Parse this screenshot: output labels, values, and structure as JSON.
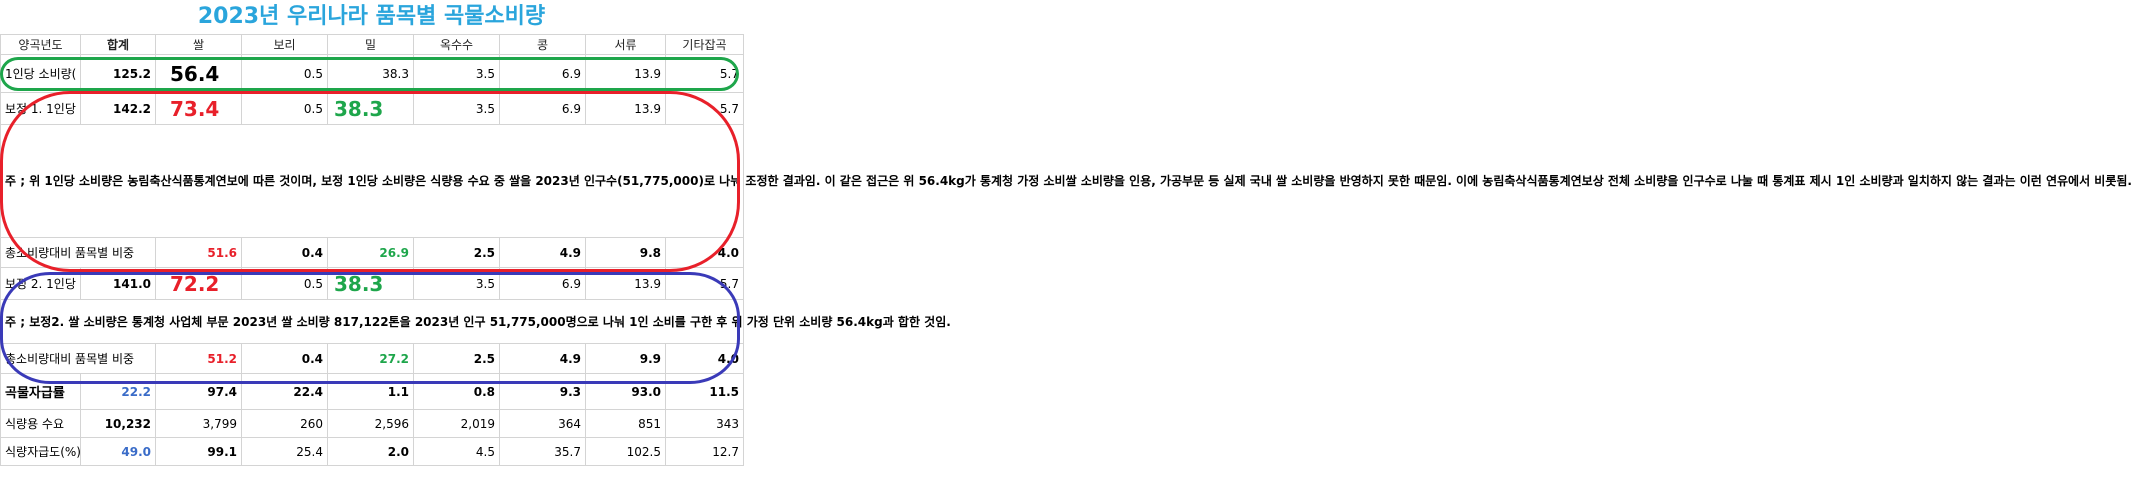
{
  "title": "2023년 우리나라 품목별 곡물소비량",
  "headers": [
    "양곡년도",
    "합계",
    "쌀",
    "보리",
    "밀",
    "옥수수",
    "콩",
    "서류",
    "기타잡곡"
  ],
  "rows": {
    "per_capita": {
      "label": "1인당 소비량(",
      "values": [
        "125.2",
        "56.4",
        "0.5",
        "38.3",
        "3.5",
        "6.9",
        "13.9",
        "5.7"
      ]
    },
    "adj1": {
      "label": "보정 1. 1인당",
      "values": [
        "142.2",
        "73.4",
        "0.5",
        "38.3",
        "3.5",
        "6.9",
        "13.9",
        "5.7"
      ]
    },
    "note1": "주 ; 위 1인당 소비량은 농림축산식품통계연보에 따른 것이며, 보정 1인당 소비량은 식량용 수요 중 쌀을 2023년 인구수(51,775,000)로 나눠 조정한 결과임. 이 같은 접근은 위 56.4kg가 통계청 가정 소비쌀 소비량을 인용, 가공부문 등 실제 국내 쌀 소비량을 반영하지 못한 때문임. 이에 농림축삭식품통계연보상 전체 소비량을 인구수로 나눌 때 통계표 제시 1인 소비량과 일치하지 않는 결과는 이런 연유에서 비롯됨.",
    "share1": {
      "label": "총소비량대비 품목별 비중",
      "values": [
        "",
        "51.6",
        "0.4",
        "26.9",
        "2.5",
        "4.9",
        "9.8",
        "4.0"
      ]
    },
    "adj2": {
      "label": "보정 2. 1인당",
      "values": [
        "141.0",
        "72.2",
        "0.5",
        "38.3",
        "3.5",
        "6.9",
        "13.9",
        "5.7"
      ]
    },
    "note2": "주 ; 보정2. 쌀 소비량은 통계청 사업체 부문 2023년 쌀 소비량 817,122톤을 2023년 인구 51,775,000명으로 나눠 1인 소비를 구한 후 위 가정 단위 소비량 56.4kg과 합한 것임.",
    "share2": {
      "label": "총소비량대비 품목별 비중",
      "values": [
        "",
        "51.2",
        "0.4",
        "27.2",
        "2.5",
        "4.9",
        "9.9",
        "4.0"
      ]
    },
    "self_suff": {
      "label": "곡물자급률",
      "values": [
        "22.2",
        "97.4",
        "22.4",
        "1.1",
        "0.8",
        "9.3",
        "93.0",
        "11.5"
      ]
    },
    "food_demand": {
      "label": "식량용 수요",
      "values": [
        "10,232",
        "3,799",
        "260",
        "2,596",
        "2,019",
        "364",
        "851",
        "343"
      ]
    },
    "food_suff": {
      "label": "식량자급도(%)",
      "values": [
        "49.0",
        "99.1",
        "25.4",
        "2.0",
        "4.5",
        "35.7",
        "102.5",
        "12.7"
      ]
    }
  },
  "colors": {
    "title": "#2aa5dc",
    "red": "#e8202a",
    "green": "#1ea64b",
    "blue": "#3a6cc8"
  }
}
